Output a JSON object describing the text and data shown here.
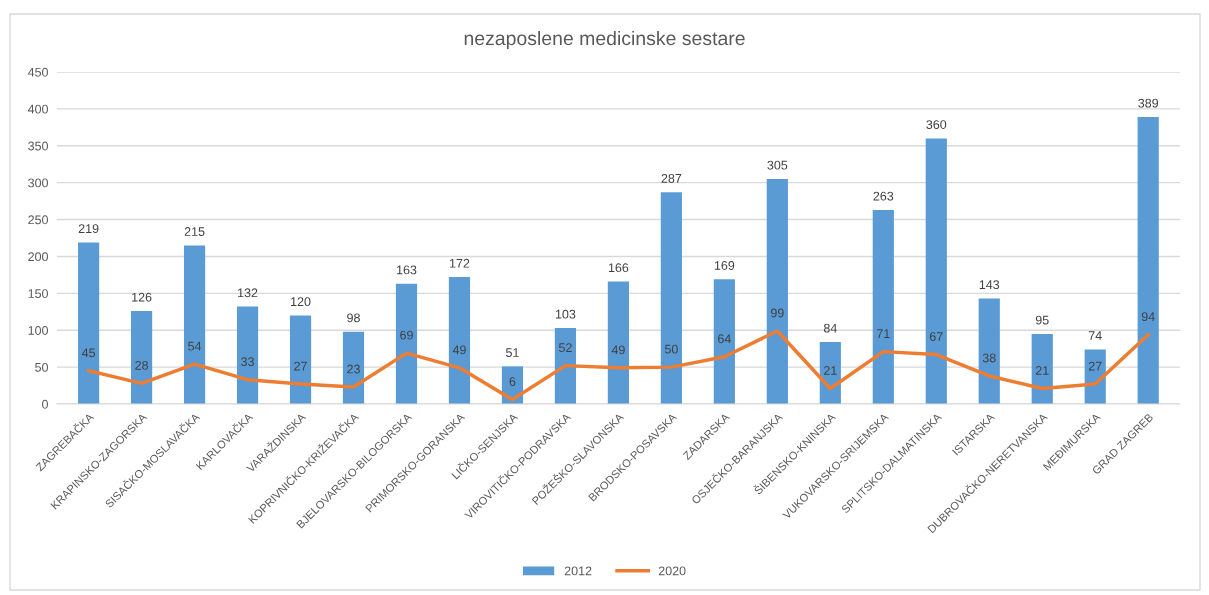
{
  "chart_data": {
    "type": "bar",
    "title": "nezaposlene medicinske sestare",
    "categories": [
      "ZAGREBAČKA",
      "KRAPINSKO-ZAGORSKA",
      "SISAČKO-MOSLAVAČKA",
      "KARLOVAČKA",
      "VARAŽDINSKA",
      "KOPRIVNIČKO-KRIŽEVAČKA",
      "BJELOVARSKO-BILOGORSKA",
      "PRIMORSKO-GORANSKA",
      "LIČKO-SENJSKA",
      "VIROVITIČKO-PODRAVSKA",
      "POŽEŠKO-SLAVONSKA",
      "BRODSKO-POSAVSKA",
      "ZADARSKA",
      "OSJEČKO-BARANJSKA",
      "ŠIBENSKO-KNINSKA",
      "VUKOVARSKO-SRIJEMSKA",
      "SPLITSKO-DALMATINSKA",
      "ISTARSKA",
      "DUBROVAČKO-NERETVANSKA",
      "MEĐIMURSKA",
      "GRAD ZAGREB"
    ],
    "series": [
      {
        "name": "2012",
        "color": "#5b9bd5",
        "values": [
          219,
          126,
          215,
          132,
          120,
          98,
          163,
          172,
          51,
          103,
          166,
          287,
          169,
          305,
          84,
          263,
          360,
          143,
          95,
          74,
          389
        ]
      },
      {
        "name": "2020",
        "type": "line",
        "color": "#ed7d31",
        "values": [
          45,
          28,
          54,
          33,
          27,
          23,
          69,
          49,
          6,
          52,
          49,
          50,
          64,
          99,
          21,
          71,
          67,
          38,
          21,
          27,
          94
        ]
      }
    ],
    "ylim": [
      0,
      450
    ],
    "yticks": [
      0,
      50,
      100,
      150,
      200,
      250,
      300,
      350,
      400,
      450
    ],
    "grid": "y",
    "legend": "bottom",
    "data_labels": true
  }
}
